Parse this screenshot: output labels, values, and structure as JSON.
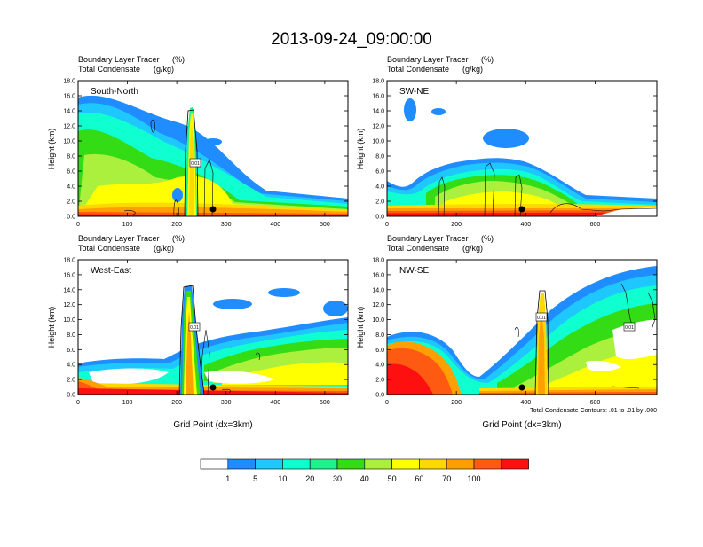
{
  "title": "2013-09-24_09:00:00",
  "panel_header": {
    "line1_label": "Boundary Layer Tracer",
    "line1_unit": "(%)",
    "line2_label": "Total Condensate",
    "line2_unit": "(g/kg)"
  },
  "ylabel": "Height (km)",
  "xlabel": "Grid Point (dx=3km)",
  "contour_note": "Total Condensate Contours: .01 to .01 by .000",
  "colorbar": {
    "colors": [
      "#ffffff",
      "#1f8cff",
      "#1ec8ff",
      "#10ffd0",
      "#1ef28c",
      "#33dc14",
      "#aaf03c",
      "#ffff00",
      "#ffd800",
      "#ffa000",
      "#ff5a12",
      "#ff1010"
    ],
    "labels": [
      "1",
      "5",
      "10",
      "20",
      "30",
      "40",
      "50",
      "60",
      "70",
      "100"
    ]
  },
  "chart_data": [
    {
      "type": "heatmap",
      "panel_label": "South-North",
      "xlabel": "",
      "ylabel": "Height (km)",
      "xlim": [
        0,
        547
      ],
      "ylim": [
        0,
        18
      ],
      "xticks": [
        "0",
        "100",
        "200",
        "300",
        "400",
        "500"
      ],
      "yticks": [
        "0.0",
        "2.0",
        "4.0",
        "6.0",
        "8.0",
        "10.0",
        "12.0",
        "14.0",
        "16.0",
        "18.0"
      ],
      "marker_x": 275,
      "contour_label_x": 233,
      "contour_label_y": 7.2,
      "contour_label": "0.01"
    },
    {
      "type": "heatmap",
      "panel_label": "SW-NE",
      "xlabel": "",
      "ylabel": "Height (km)",
      "xlim": [
        0,
        778
      ],
      "ylim": [
        0,
        18
      ],
      "xticks": [
        "0",
        "200",
        "400",
        "600"
      ],
      "yticks": [
        "0.0",
        "2.0",
        "4.0",
        "6.0",
        "8.0",
        "10.0",
        "12.0",
        "14.0",
        "16.0",
        "18.0"
      ],
      "marker_x": 390
    },
    {
      "type": "heatmap",
      "panel_label": "West-East",
      "xlabel": "Grid Point (dx=3km)",
      "ylabel": "Height (km)",
      "xlim": [
        0,
        547
      ],
      "ylim": [
        0,
        18
      ],
      "xticks": [
        "0",
        "100",
        "200",
        "300",
        "400",
        "500"
      ],
      "yticks": [
        "0.0",
        "2.0",
        "4.0",
        "6.0",
        "8.0",
        "10.0",
        "12.0",
        "14.0",
        "16.0",
        "18.0"
      ],
      "marker_x": 273,
      "contour_label_x": 225,
      "contour_label_y": 9.0,
      "contour_label": "0.01"
    },
    {
      "type": "heatmap",
      "panel_label": "NW-SE",
      "xlabel": "Grid Point (dx=3km)",
      "ylabel": "Height (km)",
      "xlim": [
        0,
        778
      ],
      "ylim": [
        0,
        18
      ],
      "xticks": [
        "0",
        "200",
        "400",
        "600"
      ],
      "yticks": [
        "0.0",
        "2.0",
        "4.0",
        "6.0",
        "8.0",
        "10.0",
        "12.0",
        "14.0",
        "16.0",
        "18.0"
      ],
      "marker_x": 390,
      "contour_label_x": 455,
      "contour_label_y": 10.3,
      "contour_label": "0.01"
    }
  ]
}
